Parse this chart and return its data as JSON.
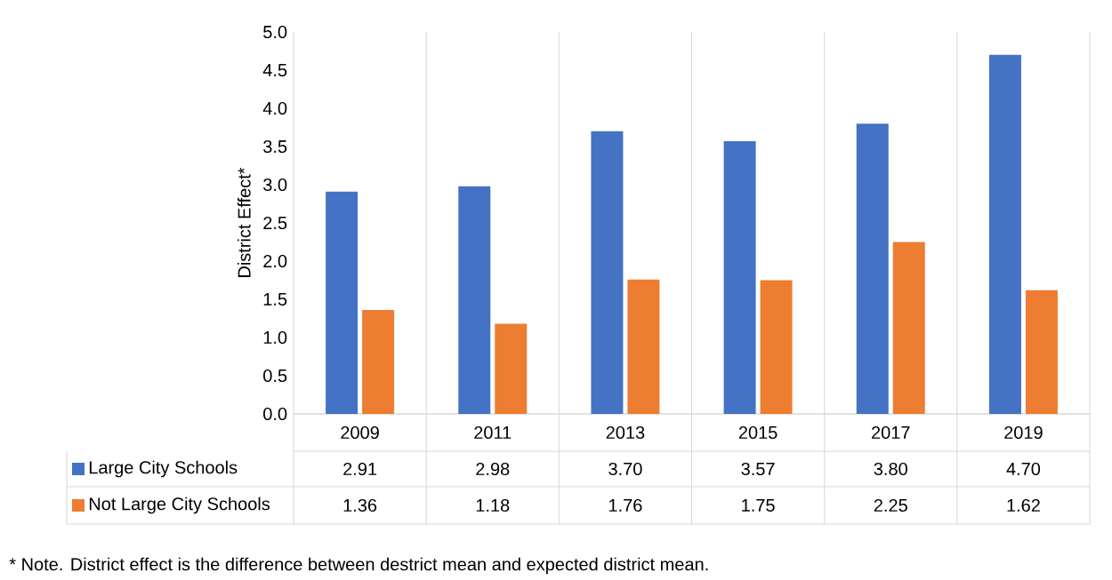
{
  "chart_data": {
    "type": "bar",
    "ylabel": "District Effect*",
    "categories": [
      "2009",
      "2011",
      "2013",
      "2015",
      "2017",
      "2019"
    ],
    "series": [
      {
        "name": "Large City Schools",
        "color": "#4472c4",
        "values": [
          2.91,
          2.98,
          3.7,
          3.57,
          3.8,
          4.7
        ],
        "value_labels": [
          "2.91",
          "2.98",
          "3.70",
          "3.57",
          "3.80",
          "4.70"
        ]
      },
      {
        "name": "Not Large City Schools",
        "color": "#ed7d31",
        "values": [
          1.36,
          1.18,
          1.76,
          1.75,
          2.25,
          1.62
        ],
        "value_labels": [
          "1.36",
          "1.18",
          "1.76",
          "1.75",
          "2.25",
          "1.62"
        ]
      }
    ],
    "ylim": [
      0,
      5
    ],
    "yticks": [
      {
        "value": 0,
        "label": "0.0"
      },
      {
        "value": 0.5,
        "label": "0.5"
      },
      {
        "value": 1,
        "label": "1.0"
      },
      {
        "value": 1.5,
        "label": "1.5"
      },
      {
        "value": 2,
        "label": "2.0"
      },
      {
        "value": 2.5,
        "label": "2.5"
      },
      {
        "value": 3,
        "label": "3.0"
      },
      {
        "value": 3.5,
        "label": "3.5"
      },
      {
        "value": 4,
        "label": "4.0"
      },
      {
        "value": 4.5,
        "label": "4.5"
      },
      {
        "value": 5,
        "label": "5.0"
      }
    ],
    "grid": "x",
    "legend": "bottom",
    "annotations": [
      "* Note. District effect is the difference between destrict mean and expected district mean."
    ]
  }
}
